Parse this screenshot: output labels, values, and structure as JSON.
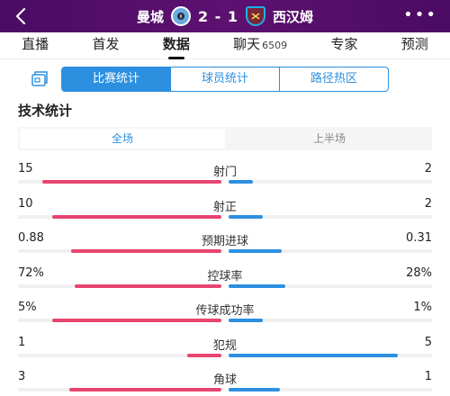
{
  "header": {
    "home_team": "曼城",
    "away_team": "西汉姆",
    "score": "2 - 1"
  },
  "tabs": [
    {
      "label": "直播",
      "count": ""
    },
    {
      "label": "首发",
      "count": ""
    },
    {
      "label": "数据",
      "count": ""
    },
    {
      "label": "聊天",
      "count": "6509"
    },
    {
      "label": "专家",
      "count": ""
    },
    {
      "label": "预测",
      "count": ""
    }
  ],
  "active_tab": 2,
  "segments": [
    "比赛统计",
    "球员统计",
    "路径热区"
  ],
  "active_segment": 0,
  "section_title": "技术统计",
  "periods": [
    "全场",
    "上半场"
  ],
  "active_period": 0,
  "colors": {
    "home": "#e8456e",
    "away": "#2c8fe0",
    "header": "#5a0d6e"
  },
  "stats": [
    {
      "label": "射门",
      "home": "15",
      "away": "2",
      "home_fill": 0.88,
      "away_fill": 0.12
    },
    {
      "label": "射正",
      "home": "10",
      "away": "2",
      "home_fill": 0.83,
      "away_fill": 0.17
    },
    {
      "label": "预期进球",
      "home": "0.88",
      "away": "0.31",
      "home_fill": 0.74,
      "away_fill": 0.26
    },
    {
      "label": "控球率",
      "home": "72%",
      "away": "28%",
      "home_fill": 0.72,
      "away_fill": 0.28
    },
    {
      "label": "传球成功率",
      "home": "5%",
      "away": "1%",
      "home_fill": 0.83,
      "away_fill": 0.17
    },
    {
      "label": "犯规",
      "home": "1",
      "away": "5",
      "home_fill": 0.17,
      "away_fill": 0.83
    },
    {
      "label": "角球",
      "home": "3",
      "away": "1",
      "home_fill": 0.75,
      "away_fill": 0.25
    }
  ]
}
